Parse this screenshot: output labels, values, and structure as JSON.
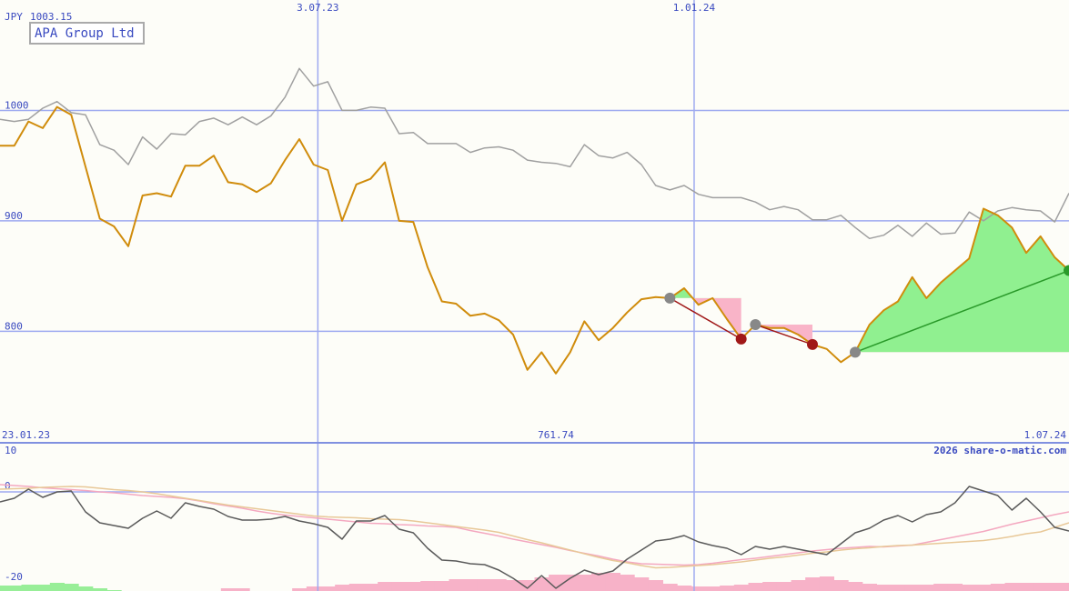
{
  "chart_data": [
    {
      "type": "line",
      "currency": "JPY",
      "watermark": "2026 share-o-matic.com",
      "start_label": "23.01.23",
      "end_label": "1.07.24",
      "legend": "top-left",
      "grid": true,
      "xlim": [
        0,
        75
      ],
      "xticks": [
        {
          "value": 22.3,
          "label": "3.07.23"
        },
        {
          "value": 48.7,
          "label": "1.01.24"
        }
      ],
      "ylim": [
        699,
        1100
      ],
      "yticks": [
        1000,
        900,
        800
      ],
      "high_index": 4,
      "low_index": 39,
      "up_fill": "#90f090",
      "down_fill": "#f9b4c8",
      "series": [
        {
          "name": "APA Group Ltd",
          "color": "#d08c0c",
          "values": [
            968,
            968,
            990,
            984,
            1003.15,
            996,
            949,
            902,
            895,
            877,
            923,
            925,
            922,
            950,
            950,
            959,
            935,
            933,
            926,
            934,
            955,
            974,
            951,
            946,
            900,
            933,
            938,
            953,
            900,
            899,
            858,
            827,
            825,
            814,
            816,
            810,
            797,
            765,
            781,
            761.74,
            781,
            809,
            792,
            803,
            817,
            829,
            831,
            830,
            839,
            824,
            830,
            811,
            793,
            806,
            803,
            803,
            797,
            788,
            784,
            772,
            781,
            806,
            819,
            827,
            849,
            830,
            844,
            855,
            866,
            911,
            905,
            894,
            871,
            886,
            867,
            855
          ]
        },
        {
          "color": "#a0a0a0",
          "values": [
            992,
            990,
            992,
            1002,
            1008,
            998,
            996,
            969,
            964,
            951,
            976,
            965,
            979,
            978,
            990,
            993,
            987,
            994,
            987,
            995,
            1012,
            1038,
            1022,
            1026,
            1000,
            1000,
            1003,
            1002,
            979,
            980,
            970,
            970,
            970,
            962,
            966,
            967,
            964,
            955,
            953,
            952,
            949,
            969,
            959,
            957,
            962,
            951,
            932,
            928,
            932,
            924,
            921,
            921,
            921,
            917,
            910,
            913,
            910,
            901,
            901,
            905,
            894,
            884,
            887,
            896,
            886,
            898,
            888,
            889,
            908,
            900,
            909,
            912,
            910,
            909,
            899,
            925
          ]
        }
      ],
      "trends": [
        {
          "start": 47,
          "end": 52,
          "color": "#a01818"
        },
        {
          "start": 53,
          "end": 57,
          "color": "#a01818"
        },
        {
          "start": 60,
          "end": 75,
          "color": "#2a9a2a"
        }
      ]
    },
    {
      "type": "line",
      "ylim": [
        -21.8,
        10.6
      ],
      "yticks": [
        10,
        0,
        -20
      ],
      "zero_line": true,
      "series": [
        {
          "color": "#f4a8c0",
          "values": [
            1.6,
            1.4,
            1.2,
            0.9,
            0.7,
            0.5,
            0.3,
            0,
            -0.2,
            -0.5,
            -0.8,
            -1.0,
            -1.2,
            -1.5,
            -2.0,
            -2.6,
            -3.1,
            -3.6,
            -4.2,
            -4.7,
            -5.1,
            -5.4,
            -5.7,
            -6.0,
            -6.3,
            -6.6,
            -6.9,
            -7.0,
            -7.2,
            -7.3,
            -7.5,
            -7.6,
            -7.8,
            -8.5,
            -9.1,
            -9.7,
            -10.4,
            -11.0,
            -11.6,
            -12.2,
            -12.9,
            -13.5,
            -14.1,
            -14.8,
            -15.4,
            -15.8,
            -15.9,
            -16.0,
            -16.1,
            -16.0,
            -15.7,
            -15.3,
            -14.9,
            -14.6,
            -14.2,
            -13.8,
            -13.4,
            -13.0,
            -12.7,
            -12.4,
            -12.2,
            -12.0,
            -12.1,
            -11.9,
            -11.7,
            -11.1,
            -10.5,
            -9.9,
            -9.3,
            -8.7,
            -7.9,
            -7.1,
            -6.4,
            -5.7,
            -5.0,
            -4.4
          ]
        },
        {
          "color": "#e8c898",
          "values": [
            0.6,
            0.7,
            0.8,
            1.0,
            1.1,
            1.2,
            1.1,
            0.8,
            0.5,
            0.3,
            0,
            -0.4,
            -0.9,
            -1.4,
            -1.9,
            -2.4,
            -2.9,
            -3.3,
            -3.7,
            -4.1,
            -4.5,
            -4.9,
            -5.3,
            -5.5,
            -5.6,
            -5.7,
            -5.9,
            -6.0,
            -6.1,
            -6.4,
            -6.8,
            -7.2,
            -7.6,
            -8.0,
            -8.4,
            -8.9,
            -9.7,
            -10.5,
            -11.2,
            -12.0,
            -12.8,
            -13.6,
            -14.4,
            -15.1,
            -15.6,
            -16.2,
            -16.7,
            -16.6,
            -16.4,
            -16.2,
            -16.0,
            -15.7,
            -15.4,
            -15.0,
            -14.6,
            -14.3,
            -13.9,
            -13.5,
            -13.2,
            -12.8,
            -12.5,
            -12.3,
            -12.0,
            -11.8,
            -11.7,
            -11.5,
            -11.3,
            -11.1,
            -10.9,
            -10.7,
            -10.3,
            -9.8,
            -9.2,
            -8.8,
            -7.8,
            -6.8
          ]
        },
        {
          "color": "#5a5a5a",
          "values": [
            -2.2,
            -1.4,
            0.6,
            -1.2,
            0,
            0.2,
            -4.4,
            -6.8,
            -7.4,
            -8,
            -5.8,
            -4.2,
            -5.8,
            -2.4,
            -3.2,
            -3.8,
            -5.4,
            -6.2,
            -6.2,
            -6,
            -5.4,
            -6.4,
            -7,
            -7.8,
            -10.4,
            -6.4,
            -6.4,
            -5.2,
            -8.2,
            -9,
            -12.4,
            -15,
            -15.2,
            -15.8,
            -16,
            -17.2,
            -19,
            -21.2,
            -18.4,
            -21.2,
            -19,
            -17.2,
            -18.2,
            -17.4,
            -14.8,
            -12.8,
            -10.8,
            -10.4,
            -9.6,
            -11,
            -11.8,
            -12.4,
            -13.8,
            -12,
            -12.6,
            -12,
            -12.6,
            -13.2,
            -13.8,
            -11.4,
            -9,
            -8,
            -6.2,
            -5.2,
            -6.6,
            -5,
            -4.4,
            -2.4,
            1.2,
            0.2,
            -0.8,
            -4,
            -1.4,
            -4.4,
            -7.8,
            -8.6
          ]
        }
      ],
      "histogram": {
        "positive_color": "#98ee98",
        "negative_color": "#f7b2c8",
        "values": [
          1.2,
          1.2,
          1.4,
          1.4,
          1.8,
          1.6,
          1.0,
          0.6,
          0.2,
          0,
          0,
          0,
          0,
          0,
          0,
          0,
          -0.6,
          -0.6,
          0,
          0,
          0,
          -0.6,
          -1.0,
          -1.0,
          -1.4,
          -1.6,
          -1.6,
          -2.0,
          -2.0,
          -2.0,
          -2.2,
          -2.2,
          -2.6,
          -2.6,
          -2.6,
          -2.6,
          -2.4,
          -2.4,
          -3.0,
          -3.6,
          -3.6,
          -3.6,
          -4.0,
          -4.0,
          -3.6,
          -3.0,
          -2.4,
          -1.6,
          -1.2,
          -1.0,
          -1.0,
          -1.2,
          -1.4,
          -1.8,
          -2.0,
          -2.0,
          -2.4,
          -3.0,
          -3.2,
          -2.4,
          -2.0,
          -1.6,
          -1.4,
          -1.4,
          -1.4,
          -1.4,
          -1.6,
          -1.6,
          -1.4,
          -1.4,
          -1.6,
          -1.8,
          -1.8,
          -1.8,
          -1.8,
          -1.8
        ]
      }
    }
  ]
}
